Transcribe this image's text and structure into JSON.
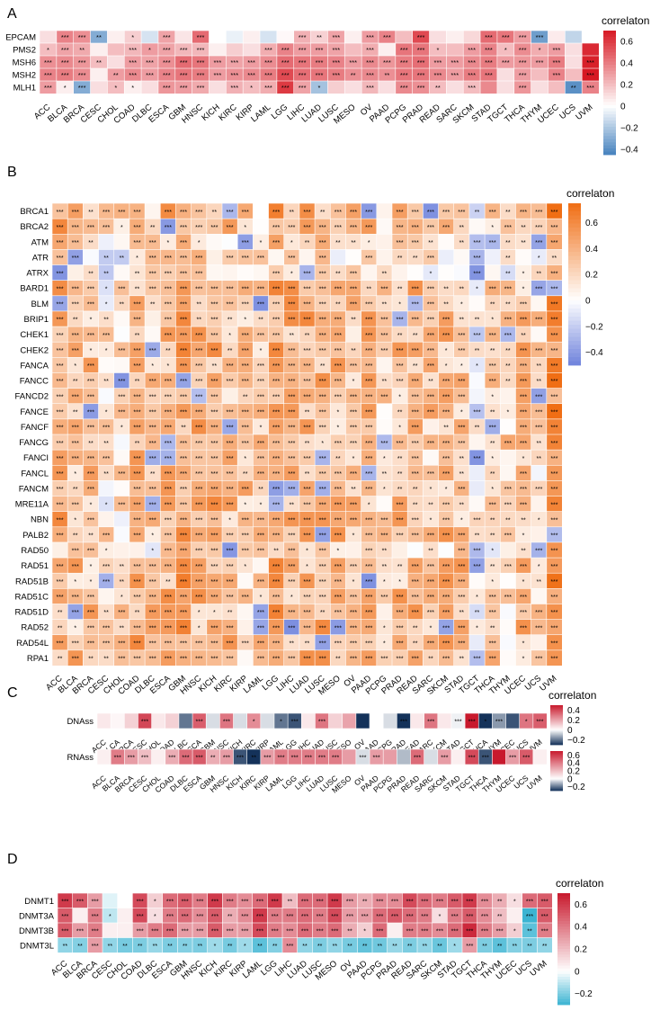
{
  "figure_title": "",
  "chart_data": [
    {
      "panel": "A",
      "type": "heatmap",
      "legend_title": "correlaton",
      "palette": "blue-white-red",
      "legend_ticks": [
        0.6,
        0.4,
        0.2,
        0,
        -0.2,
        -0.4
      ],
      "range": [
        -0.45,
        0.7
      ],
      "columns": [
        "ACC",
        "BLCA",
        "BRCA",
        "CESC",
        "CHOL",
        "COAD",
        "DLBC",
        "ESCA",
        "GBM",
        "HNSC",
        "KICH",
        "KIRC",
        "KIRP",
        "LAML",
        "LGG",
        "LIHC",
        "LUAD",
        "LUSC",
        "MESO",
        "OV",
        "PAAD",
        "PCPG",
        "PRAD",
        "READ",
        "SARC",
        "SKCM",
        "STAD",
        "TGCT",
        "THCA",
        "THYM",
        "UCEC",
        "UCS",
        "UVM"
      ],
      "rows": [
        "EPCAM",
        "PMS2",
        "MSH6",
        "MSH2",
        "MLH1"
      ],
      "values": [
        [
          0.1,
          0.38,
          0.34,
          -0.3,
          0.05,
          0.15,
          -0.1,
          0.28,
          0.08,
          0.45,
          0.0,
          -0.05,
          0.05,
          -0.1,
          0.02,
          0.24,
          0.14,
          0.28,
          0.05,
          0.3,
          0.38,
          0.2,
          0.55,
          0.1,
          0.05,
          0.12,
          0.45,
          0.42,
          0.3,
          -0.35,
          0.06,
          -0.15,
          0.0
        ],
        [
          0.2,
          0.28,
          0.26,
          0.05,
          0.2,
          0.22,
          0.3,
          0.28,
          0.22,
          0.22,
          0.05,
          0.15,
          0.1,
          0.25,
          0.38,
          0.3,
          0.3,
          0.28,
          0.2,
          0.25,
          0.05,
          0.42,
          0.42,
          0.2,
          0.2,
          0.3,
          0.38,
          0.2,
          0.35,
          0.25,
          0.3,
          0.1,
          0.65
        ],
        [
          0.34,
          0.36,
          0.32,
          0.2,
          0.1,
          0.3,
          0.28,
          0.34,
          0.45,
          0.42,
          0.3,
          0.28,
          0.3,
          0.35,
          0.45,
          0.42,
          0.4,
          0.38,
          0.3,
          0.36,
          0.32,
          0.4,
          0.44,
          0.3,
          0.3,
          0.36,
          0.4,
          0.3,
          0.32,
          0.3,
          0.4,
          0.1,
          0.68
        ],
        [
          0.38,
          0.4,
          0.35,
          0.05,
          0.3,
          0.36,
          0.3,
          0.38,
          0.42,
          0.4,
          0.3,
          0.34,
          0.36,
          0.4,
          0.55,
          0.44,
          0.42,
          0.4,
          0.34,
          0.36,
          0.34,
          0.42,
          0.42,
          0.36,
          0.3,
          0.4,
          0.42,
          0.1,
          0.3,
          0.2,
          0.38,
          0.2,
          0.7
        ],
        [
          0.3,
          0.05,
          -0.3,
          0.1,
          0.2,
          0.05,
          0.1,
          0.32,
          0.3,
          0.26,
          0.1,
          0.24,
          0.2,
          0.25,
          0.6,
          0.28,
          -0.22,
          0.15,
          0.1,
          0.22,
          0.1,
          0.36,
          0.34,
          0.2,
          0.1,
          0.2,
          0.36,
          0.1,
          0.32,
          0.1,
          0.2,
          -0.4,
          0.38
        ]
      ],
      "stars": [
        [
          "",
          "***",
          "***",
          "**",
          "",
          "*",
          "",
          "***",
          "",
          "***",
          "",
          "",
          "",
          "",
          "",
          "***",
          "**",
          "***",
          "",
          "***",
          "***",
          "",
          "***",
          "",
          "",
          "",
          "***",
          "***",
          "***",
          "***",
          "",
          "",
          ""
        ],
        [
          "*",
          "***",
          "**",
          "",
          "",
          "***",
          "*",
          "***",
          "***",
          "***",
          "",
          "",
          "",
          "***",
          "***",
          "***",
          "***",
          "***",
          "",
          "***",
          "",
          "***",
          "***",
          "*",
          "",
          "***",
          "***",
          "*",
          "***",
          "*",
          "***",
          "",
          ""
        ],
        [
          "***",
          "***",
          "***",
          "**",
          "",
          "***",
          "***",
          "***",
          "***",
          "***",
          "***",
          "***",
          "***",
          "***",
          "***",
          "***",
          "***",
          "***",
          "***",
          "***",
          "***",
          "***",
          "***",
          "***",
          "***",
          "***",
          "***",
          "***",
          "***",
          "***",
          "***",
          "",
          "***"
        ],
        [
          "***",
          "***",
          "***",
          "",
          "**",
          "***",
          "***",
          "***",
          "***",
          "***",
          "***",
          "***",
          "***",
          "***",
          "***",
          "***",
          "***",
          "***",
          "**",
          "***",
          "**",
          "***",
          "***",
          "***",
          "***",
          "***",
          "***",
          "",
          "***",
          "",
          "***",
          "",
          "***"
        ],
        [
          "***",
          "*",
          "***",
          "",
          "*",
          "*",
          "",
          "***",
          "***",
          "***",
          "",
          "***",
          "*",
          "***",
          "***",
          "***",
          "*",
          "",
          "",
          "***",
          "",
          "***",
          "***",
          "**",
          "",
          "***",
          "",
          "",
          "***",
          "",
          "",
          "**",
          "***"
        ]
      ]
    },
    {
      "panel": "B",
      "type": "heatmap",
      "legend_title": "correlaton",
      "palette": "blue-white-orange",
      "legend_ticks": [
        0.6,
        0.4,
        0.2,
        0,
        -0.2,
        -0.4
      ],
      "range": [
        -0.5,
        0.75
      ],
      "columns": [
        "ACC",
        "BLCA",
        "BRCA",
        "CESC",
        "CHOL",
        "COAD",
        "DLBC",
        "ESCA",
        "GBM",
        "HNSC",
        "KICH",
        "KIRC",
        "KIRP",
        "LAML",
        "LGG",
        "LIHC",
        "LUAD",
        "LUSC",
        "MESO",
        "OV",
        "PAAD",
        "PCPG",
        "PRAD",
        "READ",
        "SARC",
        "SKCM",
        "STAD",
        "TGCT",
        "THCA",
        "THYM",
        "UCEC",
        "UCS",
        "UVM"
      ],
      "rows": [
        "BRCA1",
        "BRCA2",
        "ATM",
        "ATR",
        "ATRX",
        "BARD1",
        "BLM",
        "BRIP1",
        "CHEK1",
        "CHEK2",
        "FANCA",
        "FANCC",
        "FANCD2",
        "FANCE",
        "FANCF",
        "FANCG",
        "FANCI",
        "FANCL",
        "FANCM",
        "MRE11A",
        "NBN",
        "PALB2",
        "RAD50",
        "RAD51",
        "RAD51B",
        "RAD51C",
        "RAD51D",
        "RAD52",
        "RAD54L",
        "RPA1"
      ]
    },
    {
      "panel": "C",
      "type": "heatmap",
      "legend_title": "correlaton",
      "palette": "navy-white-red",
      "columns": [
        "ACC",
        "BLCA",
        "BRCA",
        "CESC",
        "CHOL",
        "COAD",
        "DLBC",
        "ESCA",
        "GBM",
        "HNSC",
        "KICH",
        "KIRC",
        "KIRP",
        "LAML",
        "LGG",
        "LIHC",
        "LUAD",
        "LUSC",
        "MESO",
        "OV",
        "PAAD",
        "PCPG",
        "PRAD",
        "READ",
        "SARC",
        "SKCM",
        "STAD",
        "TGCT",
        "THCA",
        "THYM",
        "UCEC",
        "UCS",
        "UVM"
      ],
      "rows": [
        "DNAss",
        "RNAss"
      ],
      "legends": [
        {
          "ticks": [
            0.4,
            0.2,
            0,
            -0.2
          ],
          "range": [
            -0.3,
            0.5
          ]
        },
        {
          "ticks": [
            0.6,
            0.4,
            0.2,
            0,
            -0.2
          ],
          "range": [
            -0.3,
            0.7
          ]
        }
      ],
      "values": [
        [
          0.05,
          0.02,
          0.1,
          0.4,
          0.05,
          0.1,
          -0.2,
          0.35,
          -0.05,
          0.3,
          -0.05,
          0.25,
          -0.05,
          -0.2,
          -0.25,
          0.05,
          0.3,
          0.1,
          0.2,
          -0.3,
          0.0,
          -0.05,
          -0.3,
          0.05,
          0.3,
          0.05,
          -0.02,
          0.5,
          -0.3,
          -0.15,
          -0.25,
          0.3,
          0.35
        ],
        [
          0.05,
          0.4,
          0.3,
          0.2,
          0.05,
          0.25,
          0.45,
          0.5,
          0.25,
          0.3,
          -0.25,
          -0.3,
          0.3,
          0.4,
          0.4,
          0.4,
          0.4,
          0.4,
          0.3,
          -0.05,
          0.3,
          0.3,
          -0.1,
          0.45,
          -0.05,
          0.3,
          0.05,
          0.55,
          -0.25,
          0.7,
          0.3,
          0.5,
          0.05
        ]
      ],
      "stars": [
        [
          "",
          "",
          "",
          "***",
          "",
          "",
          "",
          "***",
          "",
          "***",
          "",
          "*",
          "",
          "*",
          "***",
          "",
          "***",
          "",
          "",
          "",
          "",
          "",
          "***",
          "",
          "***",
          "",
          "***",
          "***",
          "*",
          "***",
          "",
          "*",
          "***"
        ],
        [
          "",
          "***",
          "***",
          "***",
          "",
          "***",
          "***",
          "***",
          "**",
          "***",
          "***",
          "**",
          "***",
          "***",
          "***",
          "***",
          "***",
          "***",
          "",
          "***",
          "***",
          "",
          "",
          "***",
          "",
          "***",
          "",
          "***",
          "***",
          "",
          "***",
          "***",
          ""
        ]
      ]
    },
    {
      "panel": "D",
      "type": "heatmap",
      "legend_title": "correlaton",
      "palette": "cyan-white-red",
      "legend_ticks": [
        0.6,
        0.4,
        0.2,
        0,
        -0.2
      ],
      "range": [
        -0.3,
        0.7
      ],
      "columns": [
        "ACC",
        "BLCA",
        "BRCA",
        "CESC",
        "CHOL",
        "COAD",
        "DLBC",
        "ESCA",
        "GBM",
        "HNSC",
        "KICH",
        "KIRC",
        "KIRP",
        "LAML",
        "LGG",
        "LIHC",
        "LUAD",
        "LUSC",
        "MESO",
        "OV",
        "PAAD",
        "PCPG",
        "PRAD",
        "READ",
        "SARC",
        "SKCM",
        "STAD",
        "TGCT",
        "THCA",
        "THYM",
        "UCEC",
        "UCS",
        "UVM"
      ],
      "rows": [
        "DNMT1",
        "DNMT3A",
        "DNMT3B",
        "DNMT3L"
      ],
      "values": [
        [
          0.6,
          0.5,
          0.3,
          -0.05,
          0.0,
          0.55,
          0.15,
          0.45,
          0.5,
          0.4,
          0.6,
          0.4,
          0.35,
          0.45,
          0.6,
          0.2,
          0.45,
          0.45,
          0.6,
          0.3,
          0.25,
          0.35,
          0.35,
          0.55,
          0.45,
          0.4,
          0.5,
          0.6,
          0.35,
          0.25,
          0.1,
          0.45,
          0.5
        ],
        [
          0.5,
          0.05,
          0.4,
          -0.1,
          0.05,
          0.55,
          0.1,
          0.4,
          0.45,
          0.35,
          0.5,
          0.25,
          0.35,
          0.6,
          0.4,
          0.4,
          0.45,
          0.4,
          0.55,
          0.3,
          0.3,
          0.45,
          0.5,
          0.45,
          0.4,
          0.1,
          0.4,
          0.5,
          0.35,
          0.2,
          0.05,
          -0.3,
          0.5
        ],
        [
          0.5,
          0.3,
          0.4,
          0.05,
          0.05,
          0.3,
          0.4,
          0.45,
          0.3,
          0.3,
          0.5,
          0.3,
          0.3,
          0.55,
          0.4,
          0.35,
          0.45,
          0.4,
          0.45,
          0.25,
          0.15,
          0.45,
          0.05,
          0.4,
          0.4,
          0.35,
          0.45,
          0.65,
          0.4,
          0.3,
          0.15,
          -0.25,
          0.4
        ]
      ],
      "row_DNMT3L_base": -0.15
    }
  ]
}
